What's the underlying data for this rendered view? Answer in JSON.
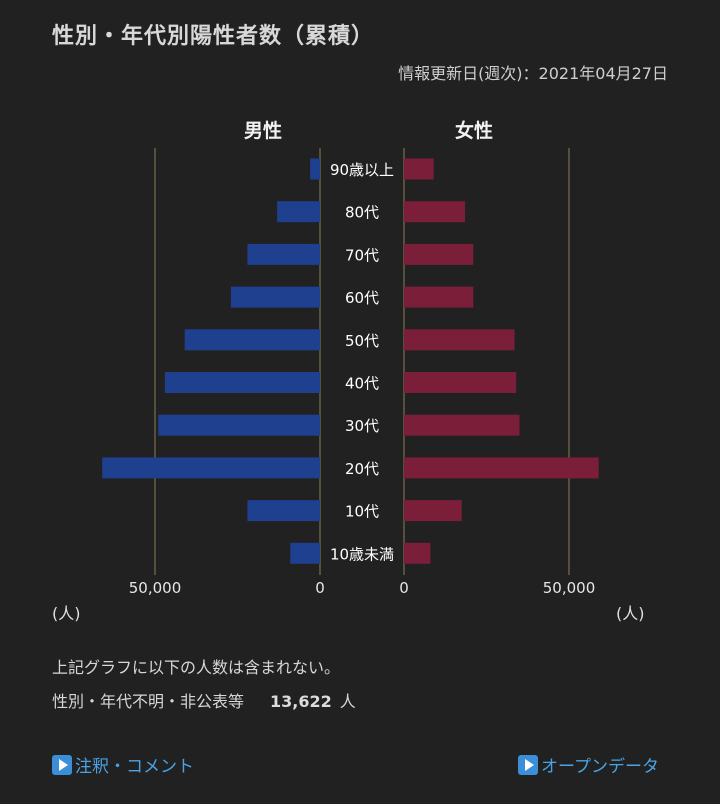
{
  "header": {
    "title": "性別・年代別陽性者数（累積）",
    "updated": "情報更新日(週次)：2021年04月27日"
  },
  "chart_data": {
    "type": "bar",
    "left_label": "男性",
    "right_label": "女性",
    "categories": [
      "90歳以上",
      "80代",
      "70代",
      "60代",
      "50代",
      "40代",
      "30代",
      "20代",
      "10代",
      "10歳未満"
    ],
    "series": [
      {
        "name": "男性",
        "color": "#1f3f8f",
        "values": [
          3000,
          13000,
          22000,
          27000,
          41000,
          47000,
          49000,
          66000,
          22000,
          9000
        ]
      },
      {
        "name": "女性",
        "color": "#7a1e3a",
        "values": [
          9000,
          18500,
          21000,
          21000,
          33500,
          34000,
          35000,
          59000,
          17500,
          8000
        ]
      }
    ],
    "x_ticks": [
      "50,000",
      "0",
      "0",
      "50,000"
    ],
    "x_tick_values": [
      50000,
      0,
      0,
      50000
    ],
    "xlim": [
      0,
      66000
    ],
    "unit": "(人)"
  },
  "notes": {
    "line1": "上記グラフに以下の人数は含まれない。",
    "line2_label": "性別・年代不明・非公表等",
    "line2_count": "13,622",
    "line2_unit": "人"
  },
  "links": {
    "annotation": "注釈・コメント",
    "opendata": "オープンデータ"
  }
}
